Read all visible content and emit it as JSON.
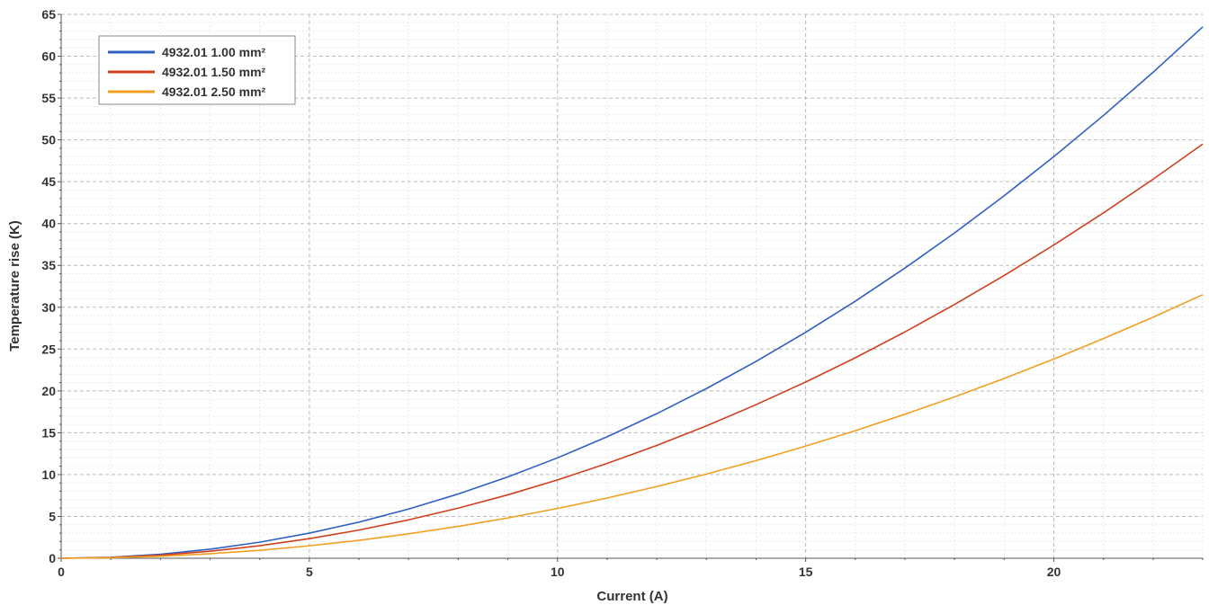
{
  "chart_data": {
    "type": "line",
    "xlabel": "Current (A)",
    "ylabel": "Temperature rise (K)",
    "xlim": [
      0,
      23
    ],
    "ylim": [
      0,
      65
    ],
    "x_ticks": [
      0,
      5,
      10,
      15,
      20
    ],
    "y_ticks": [
      0,
      5,
      10,
      15,
      20,
      25,
      30,
      35,
      40,
      45,
      50,
      55,
      60,
      65
    ],
    "grid": true,
    "minor_grid": true,
    "legend_position": "top-left",
    "x": [
      0,
      1,
      2,
      3,
      4,
      5,
      6,
      7,
      8,
      9,
      10,
      11,
      12,
      13,
      14,
      15,
      16,
      17,
      18,
      19,
      20,
      21,
      22,
      23
    ],
    "series": [
      {
        "name": "4932.01 1.00 mm²",
        "color": "#3060c0",
        "values": [
          0,
          0.12,
          0.48,
          1.08,
          1.92,
          3.0,
          4.32,
          5.88,
          7.68,
          9.72,
          12.0,
          14.52,
          17.28,
          20.28,
          23.52,
          27.0,
          30.72,
          34.68,
          38.88,
          43.32,
          48.0,
          52.92,
          58.08,
          63.5
        ]
      },
      {
        "name": "4932.01 1.50 mm²",
        "color": "#d04020",
        "values": [
          0,
          0.09,
          0.37,
          0.84,
          1.5,
          2.34,
          3.37,
          4.59,
          5.99,
          7.58,
          9.36,
          11.33,
          13.48,
          15.82,
          18.35,
          21.06,
          23.96,
          27.05,
          30.33,
          33.79,
          37.44,
          41.28,
          45.3,
          49.5
        ]
      },
      {
        "name": "4932.01 2.50 mm²",
        "color": "#f0a020",
        "values": [
          0,
          0.06,
          0.24,
          0.54,
          0.95,
          1.49,
          2.14,
          2.92,
          3.81,
          4.82,
          5.95,
          7.2,
          8.57,
          10.06,
          11.67,
          13.4,
          15.24,
          17.21,
          19.29,
          21.49,
          23.81,
          26.25,
          28.81,
          31.5
        ]
      }
    ]
  }
}
